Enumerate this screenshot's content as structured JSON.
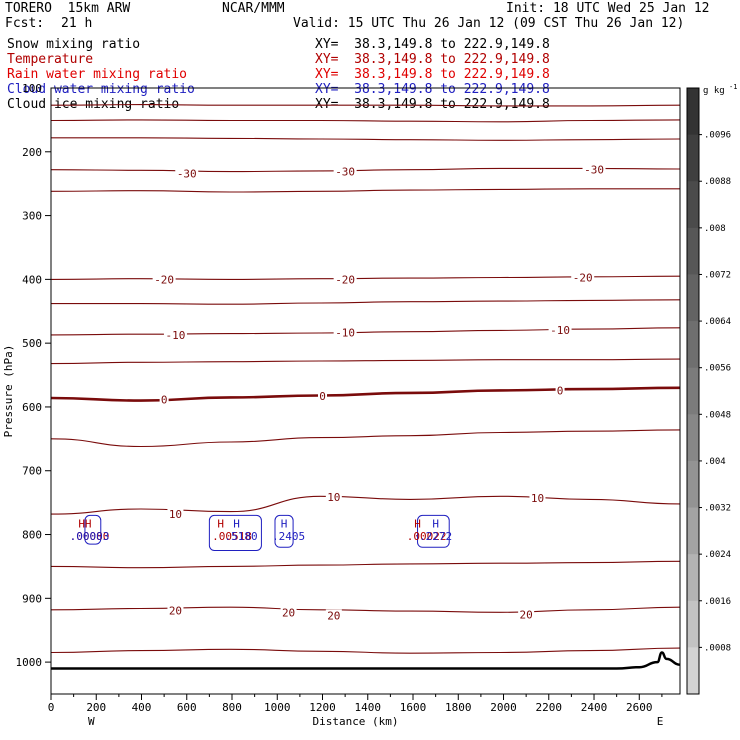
{
  "header": {
    "model": "TORERO  15km ARW",
    "center": "NCAR/MMM",
    "init": "Init: 18 UTC Wed 25 Jan 12",
    "fcst_label": "Fcst:",
    "fcst_value": "21 h",
    "valid": "Valid: 15 UTC Thu 26 Jan 12 (09 CST Thu 26 Jan 12)"
  },
  "legend": [
    {
      "name": "Snow mixing ratio",
      "xy": "XY=  38.3,149.8 to 222.9,149.8",
      "color": "#000000"
    },
    {
      "name": "Temperature",
      "xy": "XY=  38.3,149.8 to 222.9,149.8",
      "color": "#b00000"
    },
    {
      "name": "Rain water mixing ratio",
      "xy": "XY=  38.3,149.8 to 222.9,149.8",
      "color": "#e00000"
    },
    {
      "name": "Cloud water mixing ratio",
      "xy": "XY=  38.3,149.8 to 222.9,149.8",
      "color": "#2020c0"
    },
    {
      "name": "Cloud ice mixing ratio",
      "xy": "XY=  38.3,149.8 to 222.9,149.8",
      "color": "#000000"
    }
  ],
  "chart_data": {
    "type": "contour-cross-section",
    "xlabel": "Distance (km)",
    "ylabel": "Pressure (hPa)",
    "xlim": [
      0,
      2780
    ],
    "ylim": [
      1050,
      100
    ],
    "x_ticks": [
      0,
      200,
      400,
      600,
      800,
      1000,
      1200,
      1400,
      1600,
      1800,
      2000,
      2200,
      2400,
      2600
    ],
    "y_ticks": [
      200,
      300,
      400,
      500,
      600,
      700,
      800,
      900,
      1000
    ],
    "y_top_label": "100",
    "left_end": "W",
    "right_end": "E",
    "temperature_isotherms": [
      {
        "value": -45,
        "p": [
          127,
          126,
          127,
          127,
          127,
          128,
          128,
          127
        ]
      },
      {
        "value": -40,
        "p": [
          151,
          150,
          151,
          151,
          152,
          153,
          151,
          150
        ]
      },
      {
        "value": -35,
        "p": [
          178,
          178,
          179,
          180,
          181,
          182,
          181,
          180
        ]
      },
      {
        "value": -30,
        "p": [
          228,
          229,
          231,
          230,
          228,
          226,
          226,
          227
        ]
      },
      {
        "value": -25,
        "p": [
          262,
          261,
          263,
          262,
          260,
          259,
          258,
          258
        ]
      },
      {
        "value": -20,
        "p": [
          400,
          399,
          400,
          399,
          398,
          397,
          396,
          395
        ]
      },
      {
        "value": -15,
        "p": [
          438,
          438,
          439,
          437,
          435,
          434,
          433,
          432
        ]
      },
      {
        "value": -10,
        "p": [
          487,
          486,
          485,
          484,
          482,
          480,
          478,
          476
        ]
      },
      {
        "value": -5,
        "p": [
          532,
          530,
          529,
          528,
          527,
          526,
          526,
          525
        ]
      },
      {
        "value": 0,
        "p": [
          586,
          590,
          585,
          582,
          578,
          574,
          572,
          570
        ]
      },
      {
        "value": 5,
        "p": [
          650,
          662,
          655,
          648,
          645,
          640,
          638,
          636
        ]
      },
      {
        "value": 10,
        "p": [
          768,
          760,
          764,
          740,
          745,
          740,
          745,
          752
        ]
      },
      {
        "value": 15,
        "p": [
          850,
          852,
          850,
          848,
          846,
          845,
          844,
          842
        ]
      },
      {
        "value": 20,
        "p": [
          918,
          916,
          914,
          918,
          920,
          922,
          918,
          914
        ]
      },
      {
        "value": 25,
        "p": [
          985,
          982,
          980,
          983,
          986,
          985,
          982,
          978
        ]
      }
    ],
    "contour_labels": [
      {
        "text": "-30",
        "x": 600,
        "p": 234
      },
      {
        "text": "-30",
        "x": 1300,
        "p": 231
      },
      {
        "text": "-30",
        "x": 2400,
        "p": 228
      },
      {
        "text": "-20",
        "x": 500,
        "p": 400
      },
      {
        "text": "-20",
        "x": 1300,
        "p": 400
      },
      {
        "text": "-20",
        "x": 2350,
        "p": 397
      },
      {
        "text": "-10",
        "x": 550,
        "p": 487
      },
      {
        "text": "-10",
        "x": 1300,
        "p": 483
      },
      {
        "text": "-10",
        "x": 2250,
        "p": 479
      },
      {
        "text": "0",
        "x": 500,
        "p": 588
      },
      {
        "text": "0",
        "x": 1200,
        "p": 583
      },
      {
        "text": "0",
        "x": 2250,
        "p": 574
      },
      {
        "text": "10",
        "x": 550,
        "p": 768
      },
      {
        "text": "10",
        "x": 1250,
        "p": 741
      },
      {
        "text": "10",
        "x": 2150,
        "p": 743
      },
      {
        "text": "20",
        "x": 550,
        "p": 919
      },
      {
        "text": "20",
        "x": 1050,
        "p": 922
      },
      {
        "text": "20",
        "x": 1250,
        "p": 927
      },
      {
        "text": "20",
        "x": 2100,
        "p": 925
      }
    ],
    "extrema_labels": [
      {
        "text": "HH",
        "x": 150,
        "p": 783,
        "color": "#b00000"
      },
      {
        "text": ".00080",
        "x": 170,
        "p": 802,
        "color": "#b00000"
      },
      {
        "text": ".00003",
        "x": 170,
        "p": 802,
        "color": "#2020c0"
      },
      {
        "text": "H",
        "x": 750,
        "p": 783,
        "color": "#b00000"
      },
      {
        "text": "H",
        "x": 820,
        "p": 783,
        "color": "#2020c0"
      },
      {
        "text": ".00518",
        "x": 800,
        "p": 802,
        "color": "#b00000"
      },
      {
        "text": ".5180",
        "x": 840,
        "p": 802,
        "color": "#2020c0"
      },
      {
        "text": "H",
        "x": 1030,
        "p": 783,
        "color": "#2020c0"
      },
      {
        "text": ".2405",
        "x": 1050,
        "p": 802,
        "color": "#2020c0"
      },
      {
        "text": "H",
        "x": 1620,
        "p": 783,
        "color": "#b00000"
      },
      {
        "text": "H",
        "x": 1700,
        "p": 783,
        "color": "#2020c0"
      },
      {
        "text": ".00022",
        "x": 1660,
        "p": 802,
        "color": "#b00000"
      },
      {
        "text": ".2272",
        "x": 1700,
        "p": 802,
        "color": "#2020c0"
      }
    ],
    "terrain_surface": {
      "x": [
        0,
        2500,
        2600,
        2680,
        2700,
        2720,
        2780
      ],
      "p": [
        1010,
        1010,
        1008,
        1000,
        985,
        995,
        1004
      ]
    },
    "colorbar": {
      "unit_text": "g kg",
      "unit_exp": "-1",
      "ticks": [
        ".0096",
        ".0088",
        ".008",
        ".0072",
        ".0064",
        ".0056",
        ".0048",
        ".004",
        ".0032",
        ".0024",
        ".0016",
        ".0008"
      ],
      "colors": [
        "#333333",
        "#3f3f3f",
        "#4b4b4b",
        "#575757",
        "#636363",
        "#6f6f6f",
        "#7b7b7b",
        "#878787",
        "#939393",
        "#a3a3a3",
        "#b3b3b3",
        "#c3c3c3",
        "#d3d3d3"
      ]
    }
  }
}
